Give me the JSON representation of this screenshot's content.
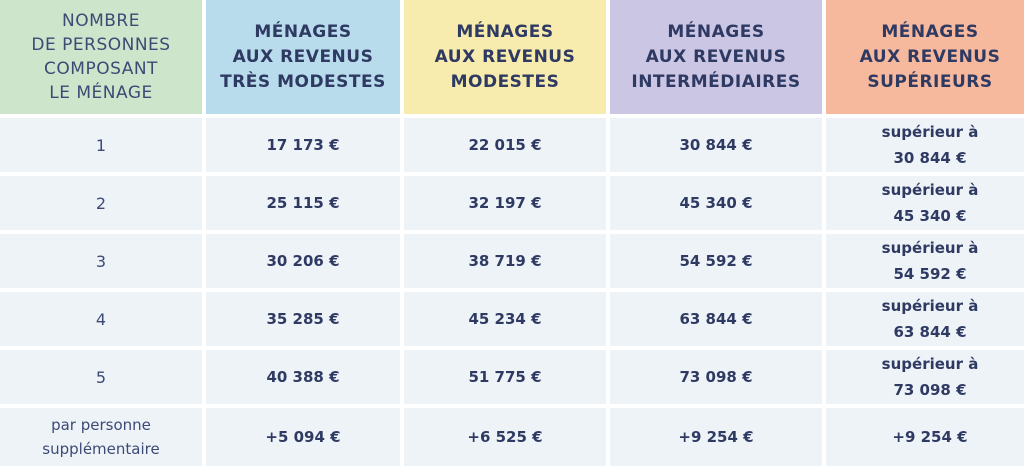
{
  "colors": {
    "header_persons": "#cde5cb",
    "header_tres_modestes": "#b9dced",
    "header_modestes": "#f7ebae",
    "header_intermediaires": "#cbc6e4",
    "header_superieurs": "#f7b99e",
    "body_cell": "#eef3f8",
    "text": "#2f3a63"
  },
  "headers": [
    "NOMBRE\nDE PERSONNES\nCOMPOSANT\nLE MÉNAGE",
    "MÉNAGES\nAUX REVENUS\nTRÈS MODESTES",
    "MÉNAGES\nAUX REVENUS\nMODESTES",
    "MÉNAGES\nAUX REVENUS\nINTERMÉDIAIRES",
    "MÉNAGES\nAUX REVENUS\nSUPÉRIEURS"
  ],
  "rows": [
    [
      "1",
      "17 173 €",
      "22 015 €",
      "30 844 €",
      "supérieur à\n30 844 €"
    ],
    [
      "2",
      "25 115 €",
      "32 197 €",
      "45 340 €",
      "supérieur à\n45 340 €"
    ],
    [
      "3",
      "30 206 €",
      "38 719 €",
      "54 592 €",
      "supérieur à\n54 592 €"
    ],
    [
      "4",
      "35 285 €",
      "45 234 €",
      "63 844 €",
      "supérieur à\n63 844 €"
    ],
    [
      "5",
      "40 388 €",
      "51 775 €",
      "73 098 €",
      "supérieur à\n73 098 €"
    ],
    [
      "par personne\nsupplémentaire",
      "+5 094 €",
      "+6 525 €",
      "+9 254 €",
      "+9 254 €"
    ]
  ]
}
